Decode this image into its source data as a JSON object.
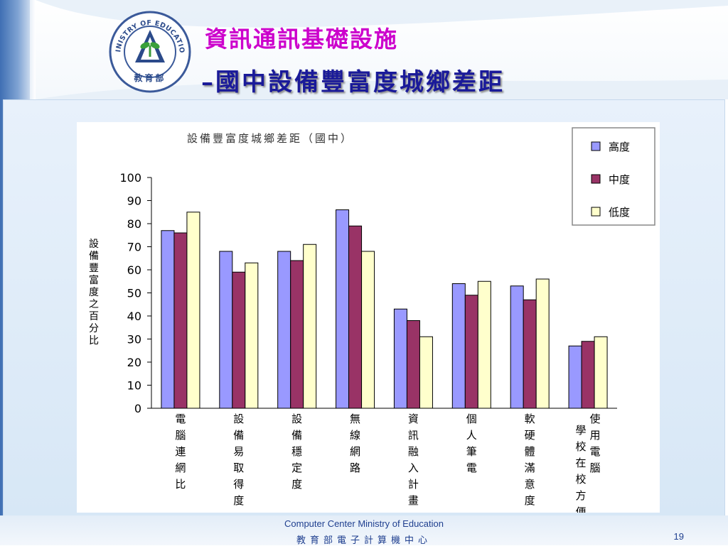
{
  "slide": {
    "title_line1": "資訊通訊基礎設施",
    "title_line2": "–國中設備豐富度城鄉差距",
    "footer_org": "Computer Center Ministry of Education",
    "footer_cn": "教育部電子計算機中心",
    "page_number": "19",
    "logo_text": "MINISTRY OF EDUCATION",
    "logo_cn": "教育部"
  },
  "colors": {
    "high": "#9999ff",
    "mid": "#993366",
    "low": "#ffffcc",
    "title1": "#cc00cc",
    "title2": "#1a1a99"
  },
  "chart_data": {
    "type": "bar",
    "title": "設備豐富度城鄉差距（國中）",
    "ylabel": "設備豐富度之百分比",
    "xlabel": "",
    "ylim": [
      0,
      100
    ],
    "yticks": [
      0,
      10,
      20,
      30,
      40,
      50,
      60,
      70,
      80,
      90,
      100
    ],
    "grid": false,
    "legend_position": "top-right",
    "categories": [
      [
        "電腦連網比"
      ],
      [
        "設備易取得度"
      ],
      [
        "設備穩定度"
      ],
      [
        "無線網路"
      ],
      [
        "資訊融入計畫"
      ],
      [
        "個人筆電"
      ],
      [
        "軟硬體滿意度"
      ],
      [
        "學校在校方便",
        "使用電腦"
      ]
    ],
    "series": [
      {
        "name": "高度",
        "color": "#9999ff",
        "values": [
          77,
          68,
          68,
          86,
          43,
          54,
          53,
          27
        ]
      },
      {
        "name": "中度",
        "color": "#993366",
        "values": [
          76,
          59,
          64,
          79,
          38,
          49,
          47,
          29
        ]
      },
      {
        "name": "低度",
        "color": "#ffffcc",
        "values": [
          85,
          63,
          71,
          68,
          31,
          55,
          56,
          31
        ]
      }
    ]
  }
}
